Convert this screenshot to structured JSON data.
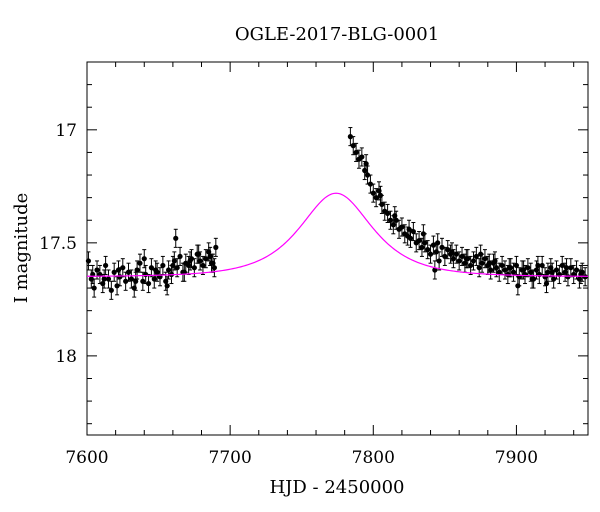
{
  "chart_data": {
    "type": "scatter",
    "title": "OGLE-2017-BLG-0001",
    "xlabel": "HJD - 2450000",
    "ylabel": "I magnitude",
    "xlim": [
      7600,
      7950
    ],
    "ylim": [
      18.35,
      16.7
    ],
    "y_inverted": true,
    "xticks": [
      7600,
      7700,
      7800,
      7900
    ],
    "xtick_labels": [
      "7600",
      "7700",
      "7800",
      "7900"
    ],
    "yticks": [
      17,
      17.5,
      18
    ],
    "ytick_labels": [
      "17",
      "17.5",
      "18"
    ],
    "grid": false,
    "model_color": "#ff00ff",
    "point_color": "#000000",
    "series": [
      {
        "kind": "points_with_errorbars",
        "x": [
          7601,
          7603,
          7605,
          7607,
          7609,
          7611,
          7613,
          7615,
          7617,
          7619,
          7621,
          7623,
          7625,
          7627,
          7629,
          7631,
          7633,
          7635,
          7637,
          7639,
          7641,
          7643,
          7645,
          7647,
          7649,
          7651,
          7653,
          7655,
          7657,
          7659,
          7661,
          7663,
          7665,
          7667,
          7669,
          7671,
          7673,
          7675,
          7677,
          7679,
          7681,
          7683,
          7685,
          7687,
          7689,
          7690,
          7640,
          7656,
          7662,
          7668,
          7686,
          7660,
          7604,
          7634,
          7648,
          7672,
          7678,
          7688,
          7612,
          7622,
          7784,
          7786,
          7788,
          7790,
          7792,
          7794,
          7796,
          7798,
          7800,
          7802,
          7804,
          7806,
          7808,
          7810,
          7812,
          7814,
          7816,
          7818,
          7820,
          7822,
          7824,
          7826,
          7828,
          7830,
          7832,
          7834,
          7836,
          7838,
          7840,
          7842,
          7844,
          7846,
          7848,
          7850,
          7852,
          7854,
          7856,
          7858,
          7860,
          7862,
          7864,
          7866,
          7868,
          7870,
          7872,
          7874,
          7876,
          7878,
          7880,
          7882,
          7884,
          7886,
          7888,
          7890,
          7892,
          7894,
          7896,
          7898,
          7900,
          7902,
          7904,
          7906,
          7908,
          7910,
          7912,
          7914,
          7916,
          7918,
          7920,
          7922,
          7924,
          7926,
          7928,
          7930,
          7932,
          7934,
          7936,
          7938,
          7940,
          7942,
          7944,
          7946,
          7948,
          7795,
          7805,
          7815,
          7825,
          7835,
          7845,
          7855,
          7865,
          7875,
          7885,
          7895,
          7905,
          7915,
          7925,
          7935,
          7945,
          7843,
          7881,
          7901,
          7911,
          7921
        ],
        "y": [
          17.58,
          17.66,
          17.7,
          17.62,
          17.64,
          17.68,
          17.6,
          17.66,
          17.71,
          17.63,
          17.69,
          17.65,
          17.61,
          17.67,
          17.63,
          17.66,
          17.7,
          17.62,
          17.59,
          17.67,
          17.64,
          17.68,
          17.61,
          17.66,
          17.63,
          17.65,
          17.6,
          17.67,
          17.62,
          17.64,
          17.58,
          17.61,
          17.56,
          17.63,
          17.59,
          17.6,
          17.57,
          17.61,
          17.55,
          17.58,
          17.6,
          17.57,
          17.54,
          17.59,
          17.61,
          17.52,
          17.57,
          17.69,
          17.48,
          17.63,
          17.56,
          17.6,
          17.64,
          17.67,
          17.62,
          17.58,
          17.55,
          17.59,
          17.66,
          17.62,
          17.03,
          17.07,
          17.1,
          17.13,
          17.12,
          17.18,
          17.2,
          17.24,
          17.28,
          17.3,
          17.27,
          17.33,
          17.36,
          17.37,
          17.4,
          17.42,
          17.4,
          17.44,
          17.43,
          17.46,
          17.47,
          17.48,
          17.45,
          17.5,
          17.49,
          17.52,
          17.5,
          17.53,
          17.55,
          17.51,
          17.54,
          17.58,
          17.52,
          17.56,
          17.53,
          17.55,
          17.57,
          17.55,
          17.58,
          17.56,
          17.59,
          17.57,
          17.6,
          17.58,
          17.56,
          17.61,
          17.59,
          17.57,
          17.6,
          17.62,
          17.59,
          17.61,
          17.63,
          17.6,
          17.62,
          17.64,
          17.61,
          17.63,
          17.6,
          17.65,
          17.62,
          17.64,
          17.61,
          17.63,
          17.66,
          17.62,
          17.64,
          17.6,
          17.65,
          17.63,
          17.61,
          17.66,
          17.62,
          17.64,
          17.6,
          17.63,
          17.65,
          17.61,
          17.64,
          17.62,
          17.66,
          17.63,
          17.65,
          17.15,
          17.29,
          17.38,
          17.44,
          17.46,
          17.5,
          17.54,
          17.57,
          17.55,
          17.58,
          17.61,
          17.62,
          17.6,
          17.63,
          17.61,
          17.64,
          17.62,
          17.59,
          17.69,
          17.66,
          17.68
        ],
        "yerr": 0.04
      },
      {
        "kind": "model_curve",
        "model": "pspl",
        "t0": 7774,
        "tE": 32,
        "u0": 0.92,
        "baseline_mag": 17.65
      }
    ]
  }
}
